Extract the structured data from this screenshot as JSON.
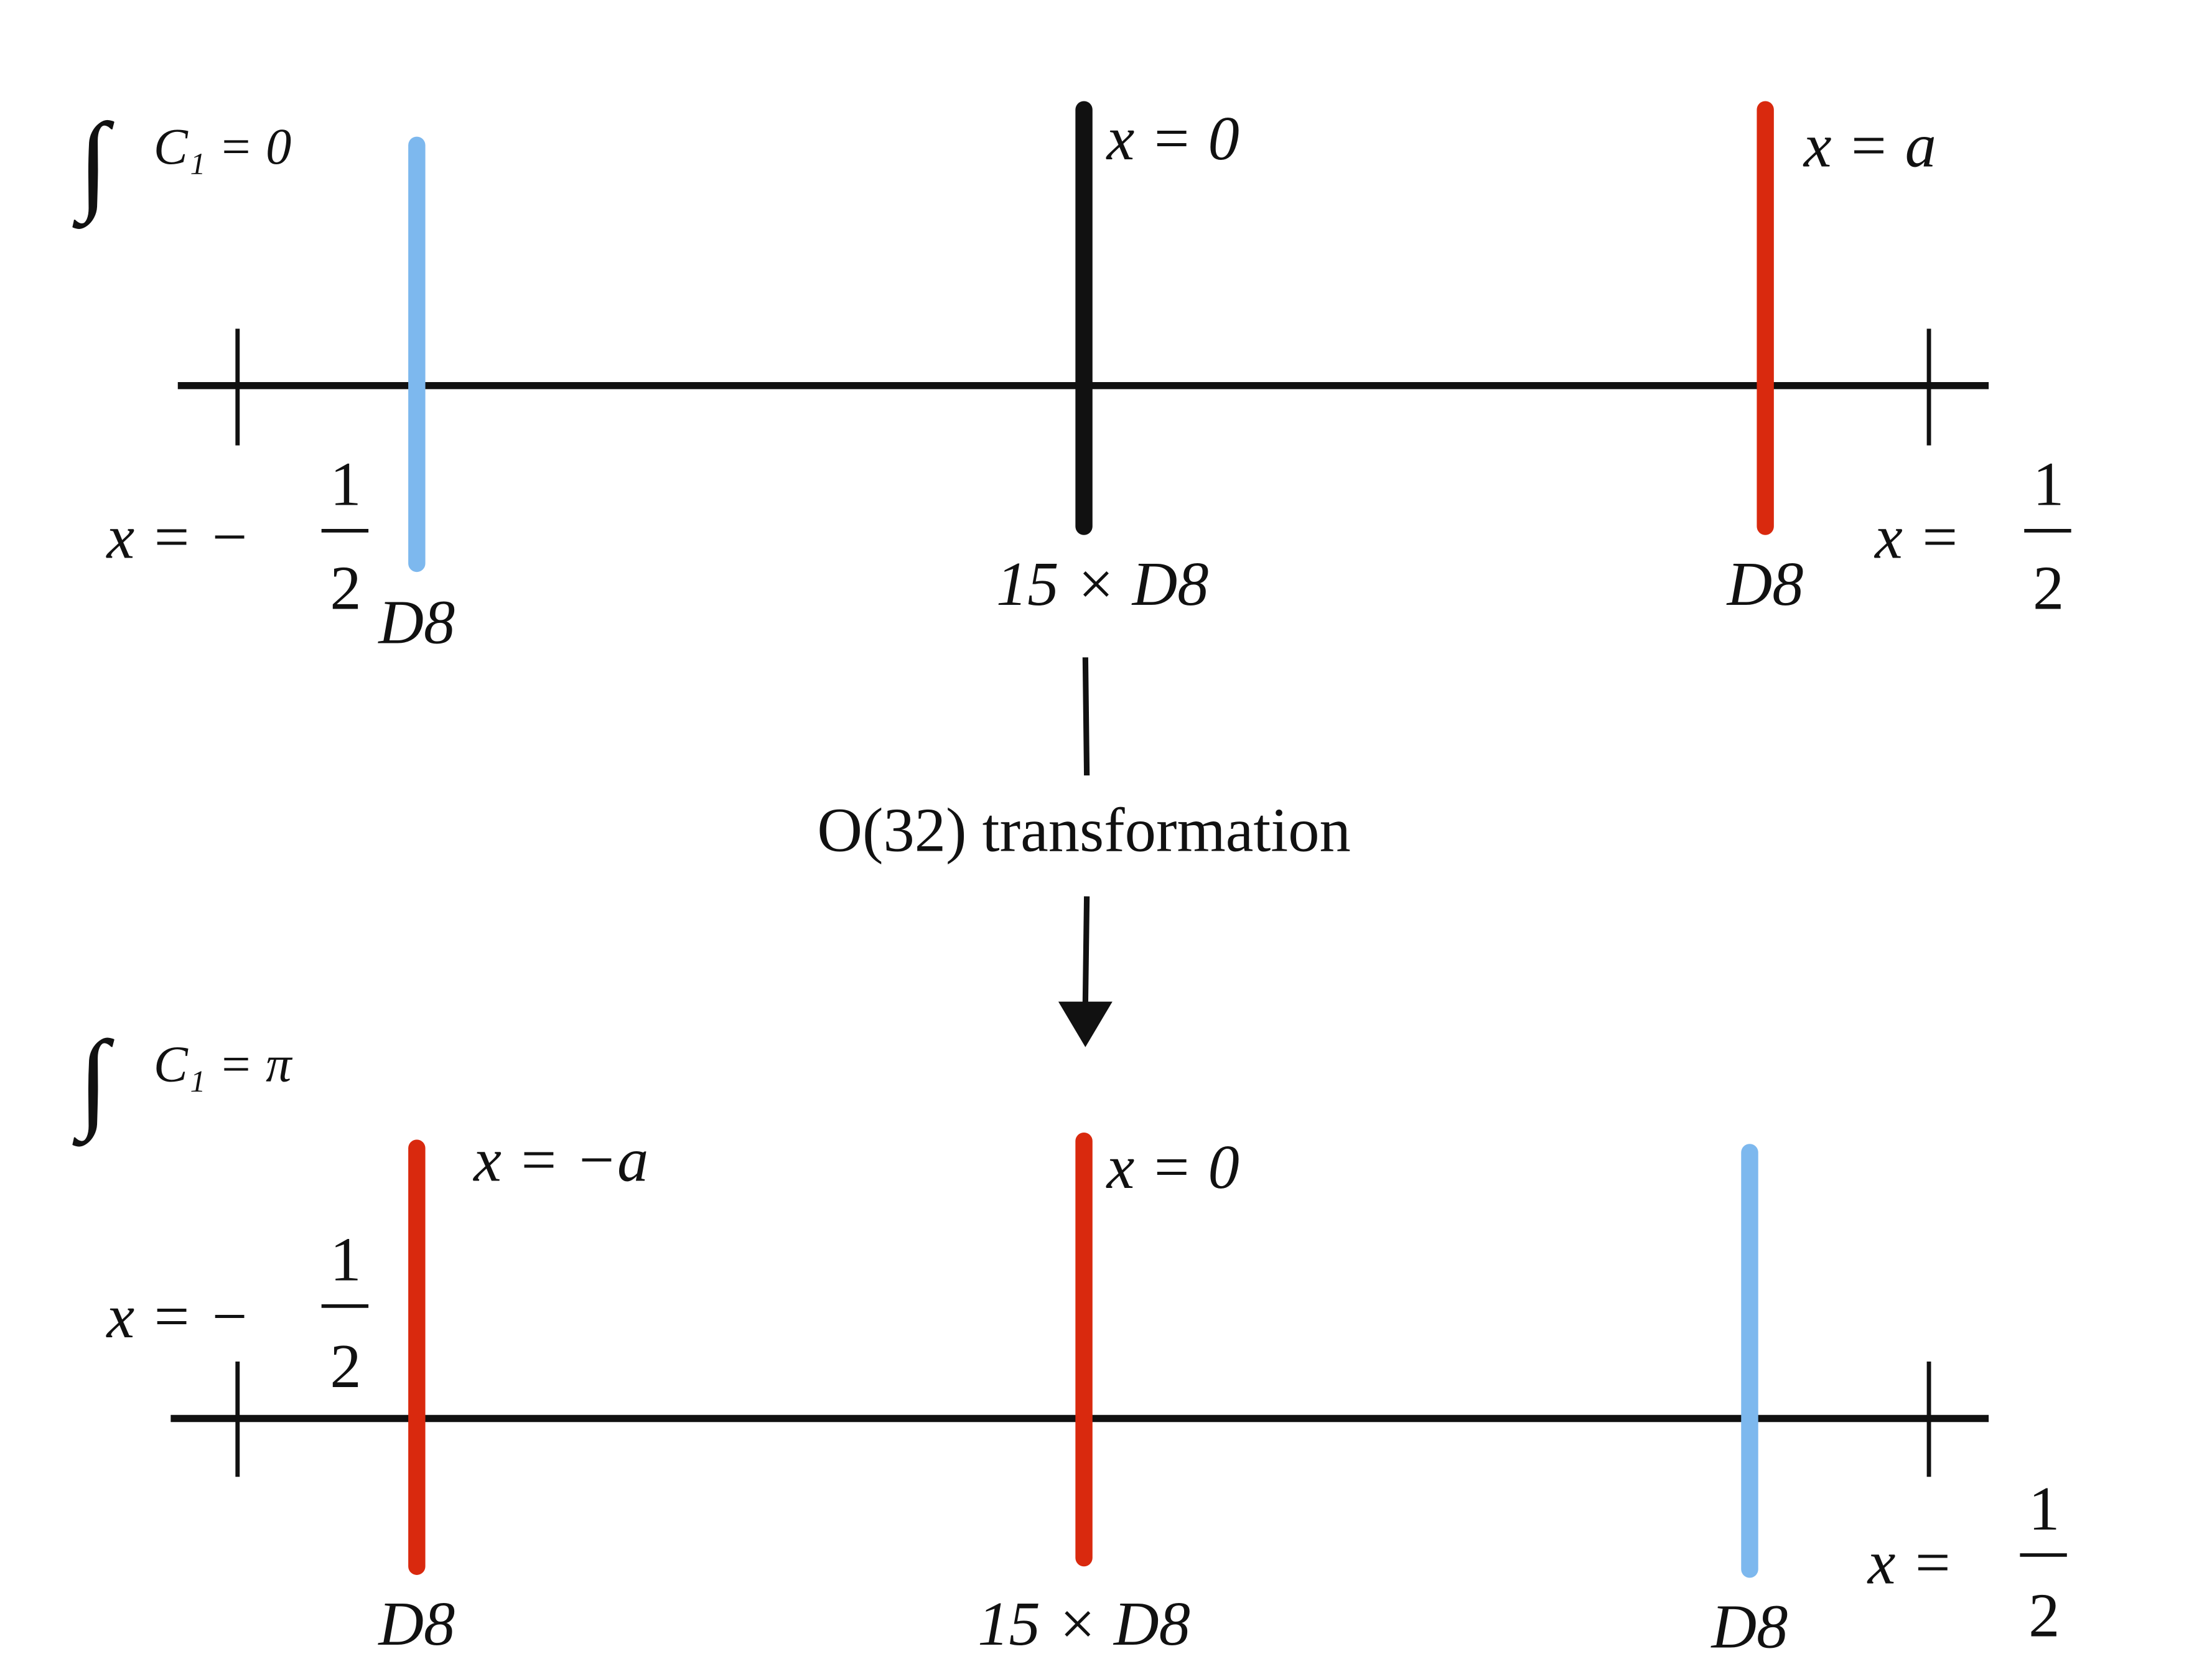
{
  "top": {
    "flux": {
      "integral": "∫",
      "text": "C₁ = 0"
    },
    "left_end": {
      "lhs": "x = −",
      "num": "1",
      "den": "2"
    },
    "right_end": {
      "lhs": "x =",
      "num": "1",
      "den": "2"
    },
    "branes": [
      {
        "label": "D8"
      },
      {
        "label": "15 × D8",
        "position": "x = 0"
      },
      {
        "label": "D8",
        "position": "x = a"
      }
    ]
  },
  "transformation": "O(32) transformation",
  "bottom": {
    "flux": {
      "integral": "∫",
      "text": "C₁ = π"
    },
    "left_end": {
      "lhs": "x = −",
      "num": "1",
      "den": "2"
    },
    "right_end": {
      "lhs": "x =",
      "num": "1",
      "den": "2"
    },
    "branes": [
      {
        "label": "D8",
        "position": "x = −a"
      },
      {
        "label": "15 × D8",
        "position": "x = 0"
      },
      {
        "label": "D8"
      }
    ]
  }
}
